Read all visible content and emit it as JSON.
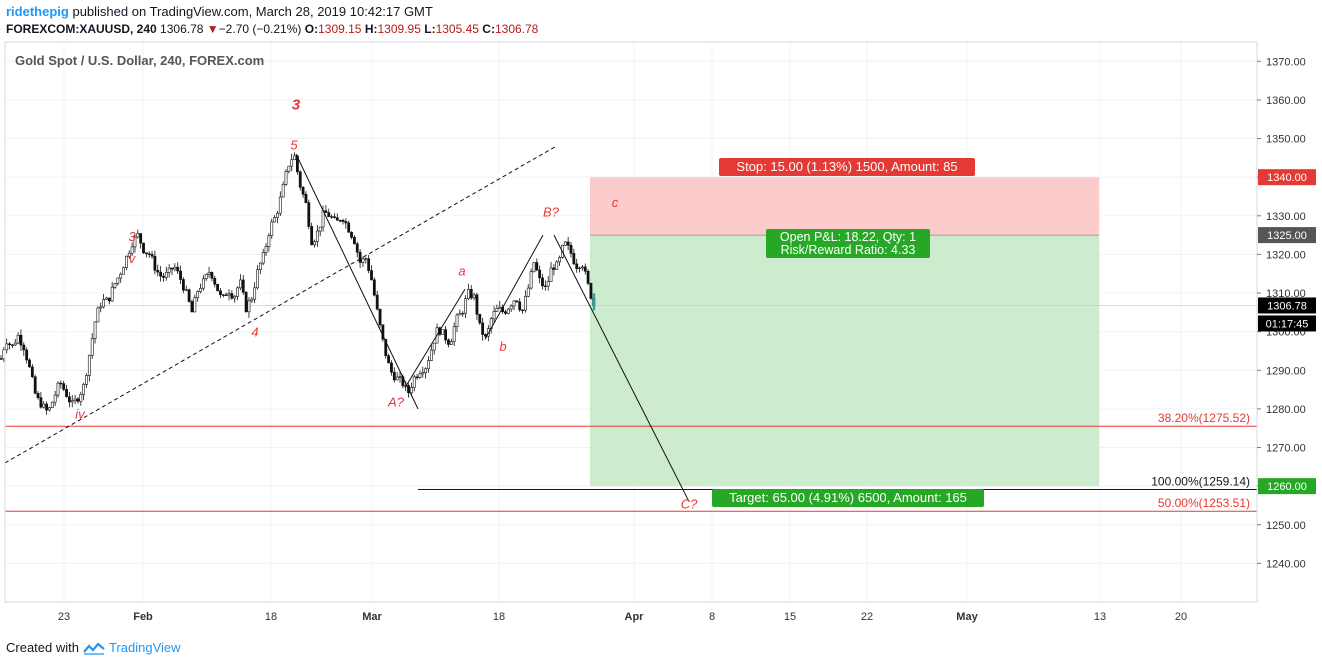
{
  "header": {
    "user": "ridethepig",
    "published_text": "published on TradingView.com, March 28, 2019 10:42:17 GMT",
    "symbol": "FOREXCOM:XAUUSD, 240",
    "last": "1306.78",
    "change_arrow": "▼",
    "change": "−2.70 (−0.21%)",
    "o_label": "O:",
    "o": "1309.15",
    "h_label": "H:",
    "h": "1309.95",
    "l_label": "L:",
    "l": "1305.45",
    "c_label": "C:",
    "c": "1306.78"
  },
  "footer": {
    "created_with": "Created with",
    "brand": "TradingView"
  },
  "chart_data": {
    "type": "candlestick",
    "title": "Gold Spot / U.S. Dollar, 240, FOREX.com",
    "ylim": [
      1230,
      1375
    ],
    "y_ticks": [
      1240,
      1250,
      1260,
      1270,
      1280,
      1290,
      1300,
      1310,
      1320,
      1330,
      1340,
      1350,
      1360,
      1370
    ],
    "x_ticks": [
      "23",
      "Feb",
      "18",
      "Mar",
      "18",
      "Apr",
      "8",
      "15",
      "22",
      "May",
      "13",
      "20"
    ],
    "price_path": [
      [
        1,
        1293
      ],
      [
        6,
        1298
      ],
      [
        12,
        1296
      ],
      [
        18,
        1299
      ],
      [
        24,
        1296
      ],
      [
        30,
        1290
      ],
      [
        36,
        1283
      ],
      [
        42,
        1281
      ],
      [
        48,
        1279
      ],
      [
        54,
        1283
      ],
      [
        60,
        1287
      ],
      [
        66,
        1284
      ],
      [
        72,
        1281
      ],
      [
        78,
        1283
      ],
      [
        84,
        1286
      ],
      [
        90,
        1295
      ],
      [
        96,
        1304
      ],
      [
        102,
        1308
      ],
      [
        108,
        1308
      ],
      [
        114,
        1312
      ],
      [
        120,
        1315
      ],
      [
        126,
        1319
      ],
      [
        132,
        1323
      ],
      [
        138,
        1325
      ],
      [
        144,
        1321
      ],
      [
        150,
        1320
      ],
      [
        156,
        1316
      ],
      [
        162,
        1314
      ],
      [
        168,
        1315
      ],
      [
        174,
        1317
      ],
      [
        180,
        1314
      ],
      [
        186,
        1310
      ],
      [
        192,
        1305
      ],
      [
        198,
        1311
      ],
      [
        204,
        1313
      ],
      [
        210,
        1316
      ],
      [
        216,
        1312
      ],
      [
        222,
        1308
      ],
      [
        228,
        1311
      ],
      [
        234,
        1309
      ],
      [
        240,
        1313
      ],
      [
        246,
        1306
      ],
      [
        252,
        1309
      ],
      [
        258,
        1316
      ],
      [
        264,
        1320
      ],
      [
        270,
        1327
      ],
      [
        276,
        1330
      ],
      [
        282,
        1336
      ],
      [
        288,
        1343
      ],
      [
        294,
        1346
      ],
      [
        300,
        1338
      ],
      [
        306,
        1333
      ],
      [
        312,
        1323
      ],
      [
        318,
        1326
      ],
      [
        324,
        1331
      ],
      [
        330,
        1330
      ],
      [
        336,
        1328
      ],
      [
        342,
        1330
      ],
      [
        348,
        1327
      ],
      [
        354,
        1324
      ],
      [
        360,
        1318
      ],
      [
        366,
        1319
      ],
      [
        372,
        1313
      ],
      [
        378,
        1304
      ],
      [
        384,
        1296
      ],
      [
        390,
        1290
      ],
      [
        396,
        1288
      ],
      [
        402,
        1287
      ],
      [
        408,
        1284
      ],
      [
        414,
        1288
      ],
      [
        420,
        1290
      ],
      [
        426,
        1291
      ],
      [
        432,
        1296
      ],
      [
        438,
        1301
      ],
      [
        444,
        1299
      ],
      [
        450,
        1297
      ],
      [
        456,
        1303
      ],
      [
        462,
        1305
      ],
      [
        468,
        1310
      ],
      [
        474,
        1309
      ],
      [
        480,
        1301
      ],
      [
        486,
        1298
      ],
      [
        492,
        1304
      ],
      [
        498,
        1306
      ],
      [
        504,
        1305
      ],
      [
        510,
        1307
      ],
      [
        516,
        1309
      ],
      [
        522,
        1305
      ],
      [
        528,
        1311
      ],
      [
        534,
        1318
      ],
      [
        540,
        1313
      ],
      [
        546,
        1311
      ],
      [
        552,
        1317
      ],
      [
        558,
        1317
      ],
      [
        564,
        1323
      ],
      [
        570,
        1321
      ],
      [
        576,
        1317
      ],
      [
        582,
        1318
      ],
      [
        588,
        1312
      ],
      [
        594,
        1306.78
      ]
    ],
    "annotations": [
      {
        "text": "3",
        "style": "bold",
        "x": 296,
        "y": 1357.5
      },
      {
        "text": "5",
        "x": 294,
        "y": 1347.2
      },
      {
        "text": "3",
        "x": 132,
        "y": 1323.5
      },
      {
        "text": "v",
        "x": 132,
        "y": 1317.8
      },
      {
        "text": "4",
        "x": 255,
        "y": 1298.8
      },
      {
        "text": "iv",
        "x": 80,
        "y": 1277.5
      },
      {
        "text": "a",
        "x": 462,
        "y": 1314.5
      },
      {
        "text": "b",
        "x": 503,
        "y": 1295.0
      },
      {
        "text": "A?",
        "x": 396,
        "y": 1280.6
      },
      {
        "text": "B?",
        "x": 551,
        "y": 1329.8
      },
      {
        "text": "c",
        "x": 615,
        "y": 1332.3
      },
      {
        "text": "C?",
        "x": 689,
        "y": 1254.2
      }
    ],
    "lines": [
      {
        "style": "dashed",
        "x1": 5,
        "y1": 1266.0,
        "x2": 556,
        "y2": 1348.0
      },
      {
        "style": "solid",
        "x1": 296,
        "y1": 1346.0,
        "x2": 418,
        "y2": 1280.0
      },
      {
        "style": "solid",
        "x1": 405,
        "y1": 1285.5,
        "x2": 465,
        "y2": 1311.0
      },
      {
        "style": "solid",
        "x1": 485,
        "y1": 1298.0,
        "x2": 543,
        "y2": 1325.0
      },
      {
        "style": "solid",
        "x1": 554,
        "y1": 1325.0,
        "x2": 689,
        "y2": 1256.0
      }
    ],
    "fib_levels": [
      {
        "label": "38.20%(1275.52)",
        "value": 1275.52,
        "color": "#e53935",
        "x1": 5
      },
      {
        "label": "100.00%(1259.14)",
        "value": 1259.14,
        "color": "#131722",
        "x1": 418
      },
      {
        "label": "50.00%(1253.51)",
        "value": 1253.51,
        "color": "#e53935",
        "x1": 5
      }
    ],
    "position": {
      "type": "short",
      "entry": 1325.0,
      "stop": 1340.0,
      "target": 1260.0,
      "x_start": 590,
      "x_end": 1099,
      "stop_label": "Stop: 15.00 (1.13%) 1500, Amount: 85",
      "pnl_label": "Open P&L: 18.22, Qty: 1",
      "rr_label": "Risk/Reward Ratio: 4.33",
      "target_label": "Target: 65.00 (4.91%) 6500, Amount: 165"
    },
    "price_labels": [
      {
        "value": 1340.0,
        "text": "1340.00",
        "bg": "#e53935"
      },
      {
        "value": 1325.0,
        "text": "1325.00",
        "bg": "#555555"
      },
      {
        "value": 1306.78,
        "text": "1306.78",
        "bg": "#000000"
      },
      {
        "value": 1260.0,
        "text": "1260.00",
        "bg": "#26a826"
      }
    ],
    "countdown": "01:17:45",
    "last_price": 1306.78
  },
  "colors": {
    "stop_zone": "#fccccc",
    "target_zone": "#cdecce",
    "red": "#e53935",
    "green": "#26a826",
    "grid": "#f0f3f6",
    "axis": "#787b86"
  }
}
